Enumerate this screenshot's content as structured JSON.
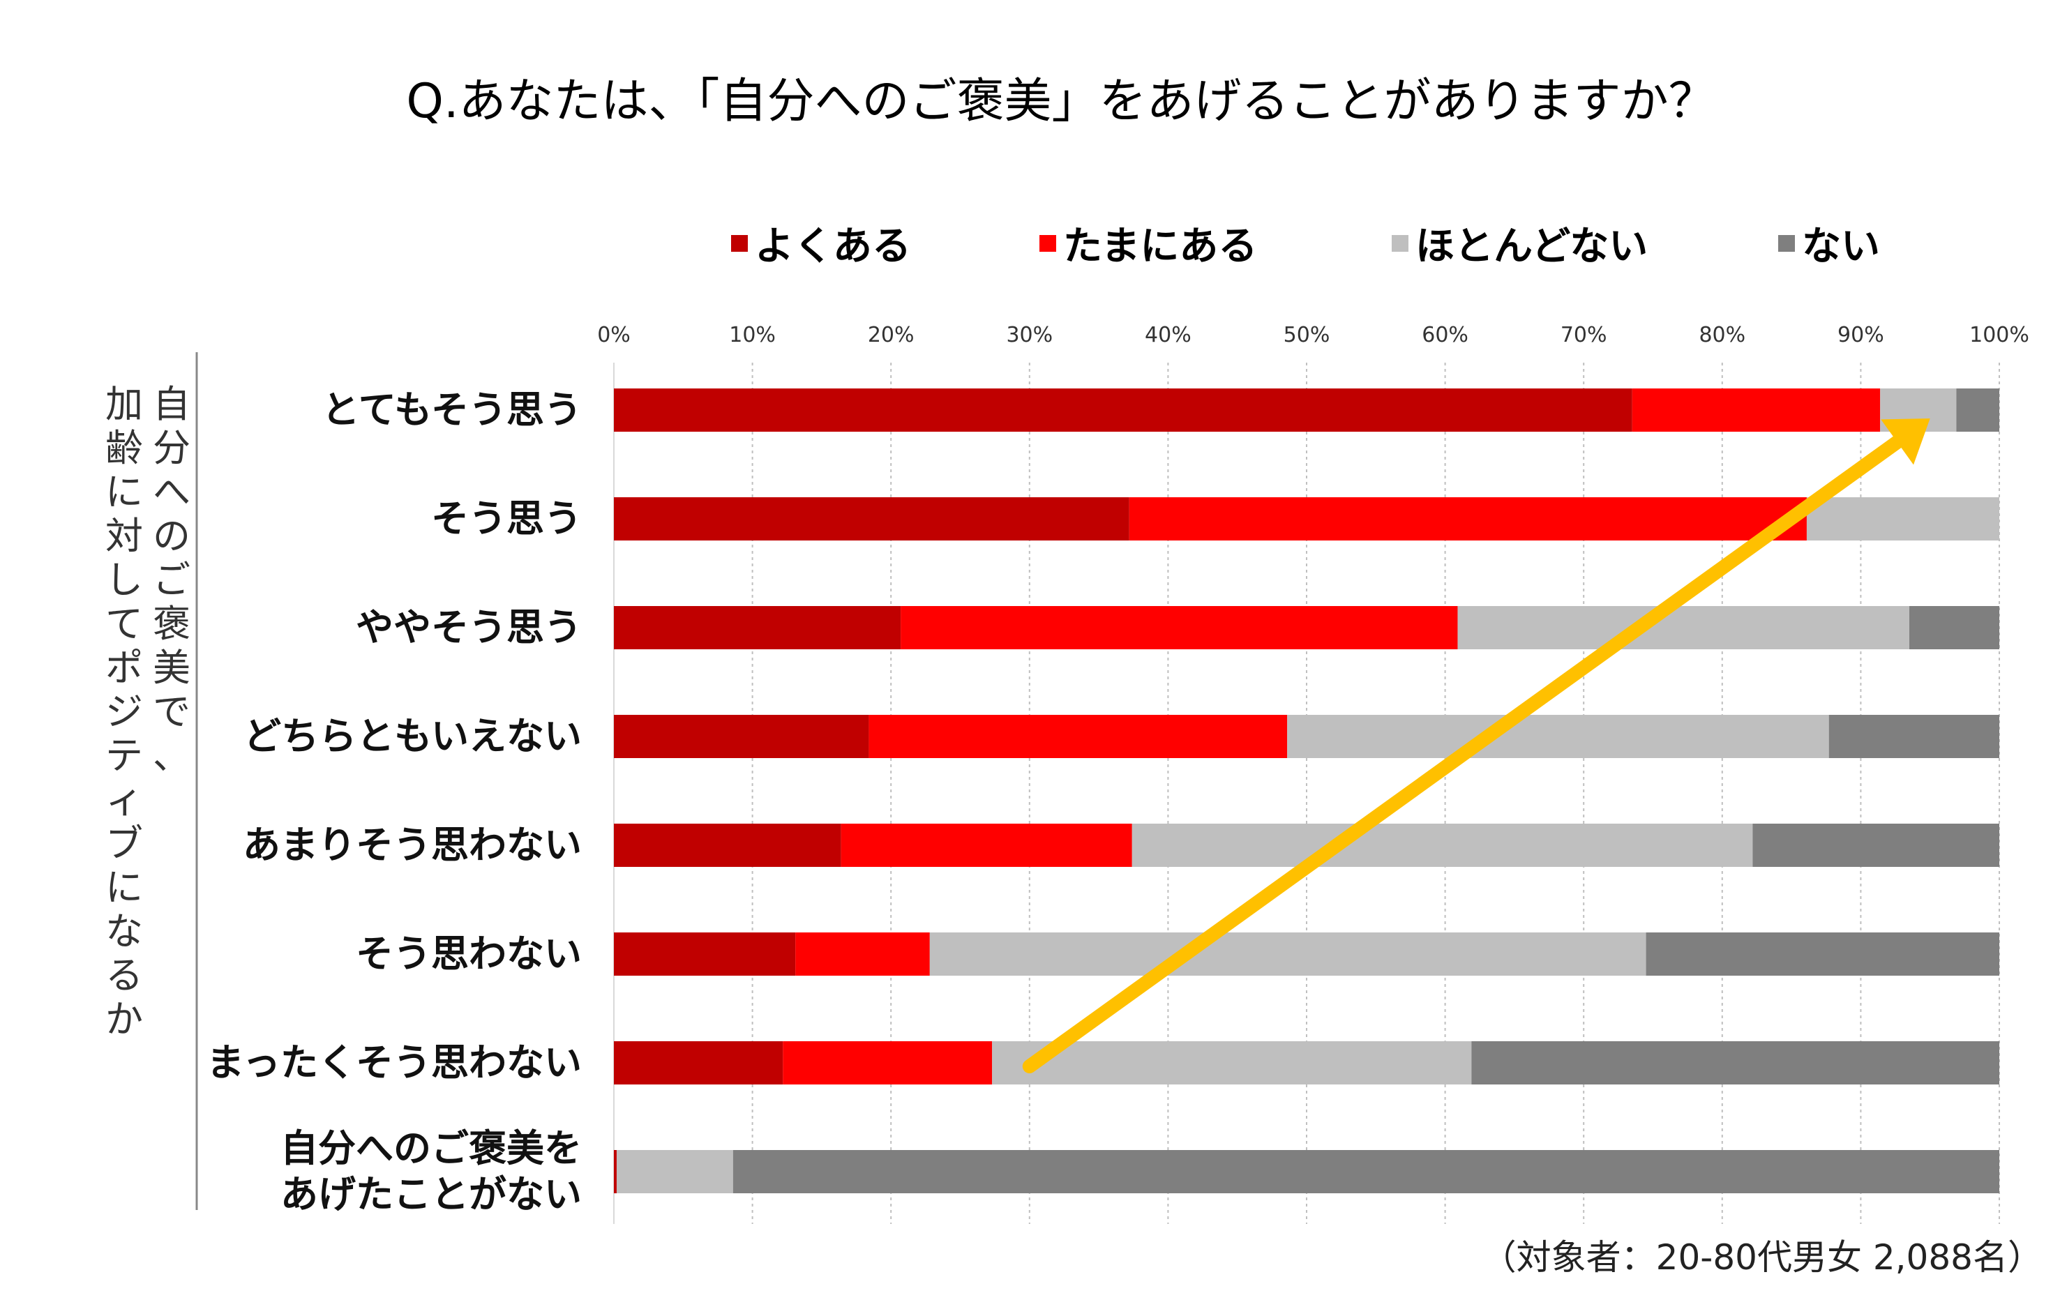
{
  "chart_data": {
    "type": "bar",
    "orientation": "horizontal",
    "stacked": true,
    "title": "Q.あなたは、「自分へのご褒美」をあげることがありますか？",
    "ylabel_lines": [
      "自分へのご褒美で、",
      "加齢に対してポジティブになるか"
    ],
    "note": "（対象者：20-80代男女 2,088名）",
    "xlim": [
      0,
      100
    ],
    "x_ticks": [
      "0%",
      "10%",
      "20%",
      "30%",
      "40%",
      "50%",
      "60%",
      "70%",
      "80%",
      "90%",
      "100%"
    ],
    "grid": "vertical-dotted",
    "legend_position": "top",
    "categories": [
      [
        "とてもそう思う"
      ],
      [
        "そう思う"
      ],
      [
        "ややそう思う"
      ],
      [
        "どちらともいえない"
      ],
      [
        "あまりそう思わない"
      ],
      [
        "そう思わない"
      ],
      [
        "まったくそう思わない"
      ],
      [
        "自分へのご褒美を",
        "あげたことがない"
      ]
    ],
    "series": [
      {
        "name": "よくある",
        "color": "#c00000",
        "values": [
          73.5,
          37.2,
          20.7,
          18.4,
          16.4,
          13.1,
          12.2,
          0.2
        ]
      },
      {
        "name": "たまにある",
        "color": "#ff0000",
        "values": [
          17.9,
          48.9,
          40.2,
          30.2,
          21.0,
          9.7,
          15.1,
          0.0
        ]
      },
      {
        "name": "ほとんどない",
        "color": "#bfbfbf",
        "values": [
          5.5,
          13.9,
          32.6,
          39.1,
          44.8,
          51.7,
          34.6,
          8.4
        ]
      },
      {
        "name": "ない",
        "color": "#7f7f7f",
        "values": [
          3.1,
          0.0,
          6.5,
          12.3,
          17.8,
          25.5,
          38.1,
          91.4
        ]
      }
    ],
    "annotation": {
      "type": "trend-arrow",
      "color": "#ffc000",
      "from": [
        30,
        "まったくそう思わない"
      ],
      "to": [
        95,
        "とてもそう思う"
      ]
    }
  }
}
